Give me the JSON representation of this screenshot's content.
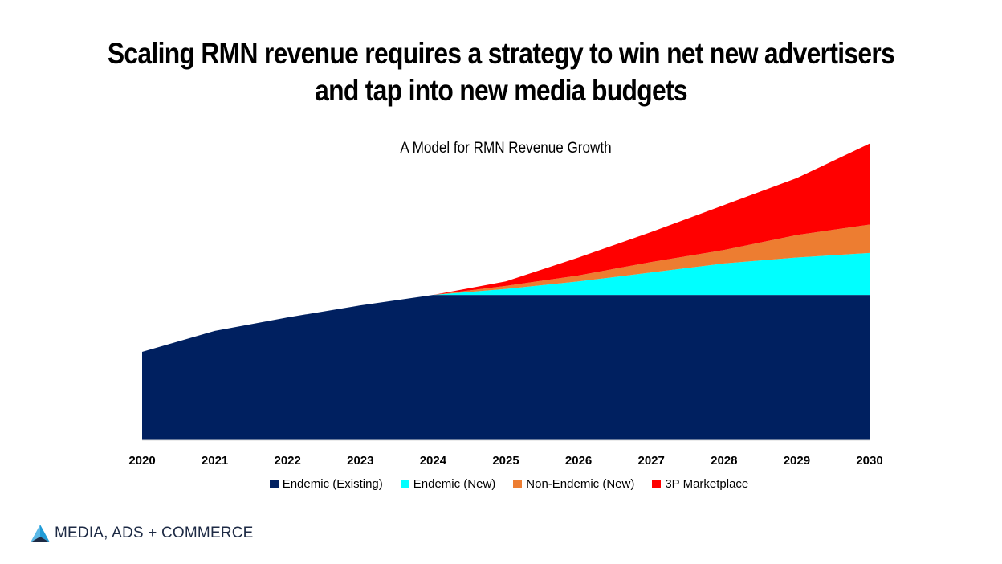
{
  "header": {
    "title_line1": "Scaling RMN revenue requires a strategy to win net new advertisers",
    "title_line2": "and tap into new media budgets"
  },
  "chart_data": {
    "type": "area",
    "stacked": true,
    "title": "A Model for RMN Revenue Growth",
    "categories": [
      "2020",
      "2021",
      "2022",
      "2023",
      "2024",
      "2025",
      "2026",
      "2027",
      "2028",
      "2029",
      "2030"
    ],
    "ylim": [
      0,
      100
    ],
    "y_axis_visible": false,
    "grid": false,
    "legend_position": "bottom",
    "series": [
      {
        "name": "Endemic (Existing)",
        "color": "#002060",
        "values": [
          29.5,
          36.5,
          41,
          45,
          48.5,
          48.5,
          48.5,
          48.5,
          48.5,
          48.5,
          48.5
        ]
      },
      {
        "name": "Endemic (New)",
        "color": "#00FFFF",
        "values": [
          0,
          0,
          0,
          0,
          0,
          2,
          4.5,
          7.5,
          10.5,
          12.5,
          14
        ]
      },
      {
        "name": "Non-Endemic (New)",
        "color": "#ED7D31",
        "values": [
          0,
          0,
          0,
          0,
          0,
          1,
          2,
          3.5,
          4.5,
          7.5,
          9.5
        ]
      },
      {
        "name": "3P Marketplace",
        "color": "#FF0000",
        "values": [
          0,
          0,
          0,
          0,
          0,
          1.5,
          6,
          10,
          15,
          19,
          27
        ]
      }
    ]
  },
  "logo": {
    "text": "MEDIA, ADS + COMMERCE",
    "colors": [
      "#1f9bd7",
      "#1d2a44"
    ]
  }
}
